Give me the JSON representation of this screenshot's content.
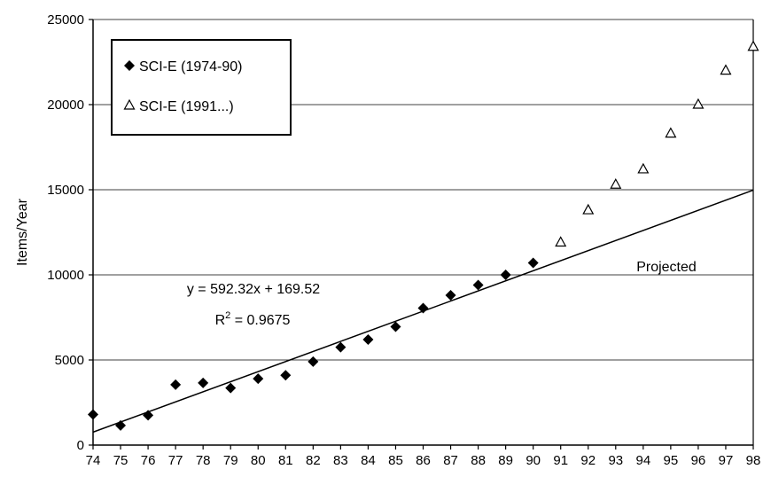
{
  "chart_data": {
    "type": "scatter",
    "xlabel": "",
    "ylabel": "Items/Year",
    "categories": [
      "74",
      "75",
      "76",
      "77",
      "78",
      "79",
      "80",
      "81",
      "82",
      "83",
      "84",
      "85",
      "86",
      "87",
      "88",
      "89",
      "90",
      "91",
      "92",
      "93",
      "94",
      "95",
      "96",
      "97",
      "98"
    ],
    "ylim": [
      0,
      25000
    ],
    "yticks": [
      0,
      5000,
      10000,
      15000,
      20000,
      25000
    ],
    "yticklabels": [
      "0",
      "5000",
      "10000",
      "15000",
      "20000",
      "25000"
    ],
    "grid": "horizontal",
    "legend_position": "top-left",
    "series": [
      {
        "name": "SCI-E (1974-90)",
        "marker": "filled-diamond",
        "x": [
          "74",
          "75",
          "76",
          "77",
          "78",
          "79",
          "80",
          "81",
          "82",
          "83",
          "84",
          "85",
          "86",
          "87",
          "88",
          "89",
          "90"
        ],
        "values": [
          1800,
          1150,
          1750,
          3550,
          3650,
          3350,
          3900,
          4100,
          4900,
          5750,
          6200,
          6950,
          8050,
          8800,
          9400,
          10000,
          10700
        ]
      },
      {
        "name": "SCI-E (1991...)",
        "marker": "open-triangle",
        "x": [
          "91",
          "92",
          "93",
          "94",
          "95",
          "96",
          "97",
          "98"
        ],
        "values": [
          11900,
          13800,
          15300,
          16200,
          18300,
          20000,
          22000,
          23400
        ]
      }
    ],
    "trendline": {
      "slope": 592.32,
      "intercept": 169.52,
      "equation_label": "y = 592.32x + 169.52",
      "r2_prefix": "R",
      "r2_sup": "2",
      "r2_value": " = 0.9675",
      "annotation": "Projected"
    }
  }
}
